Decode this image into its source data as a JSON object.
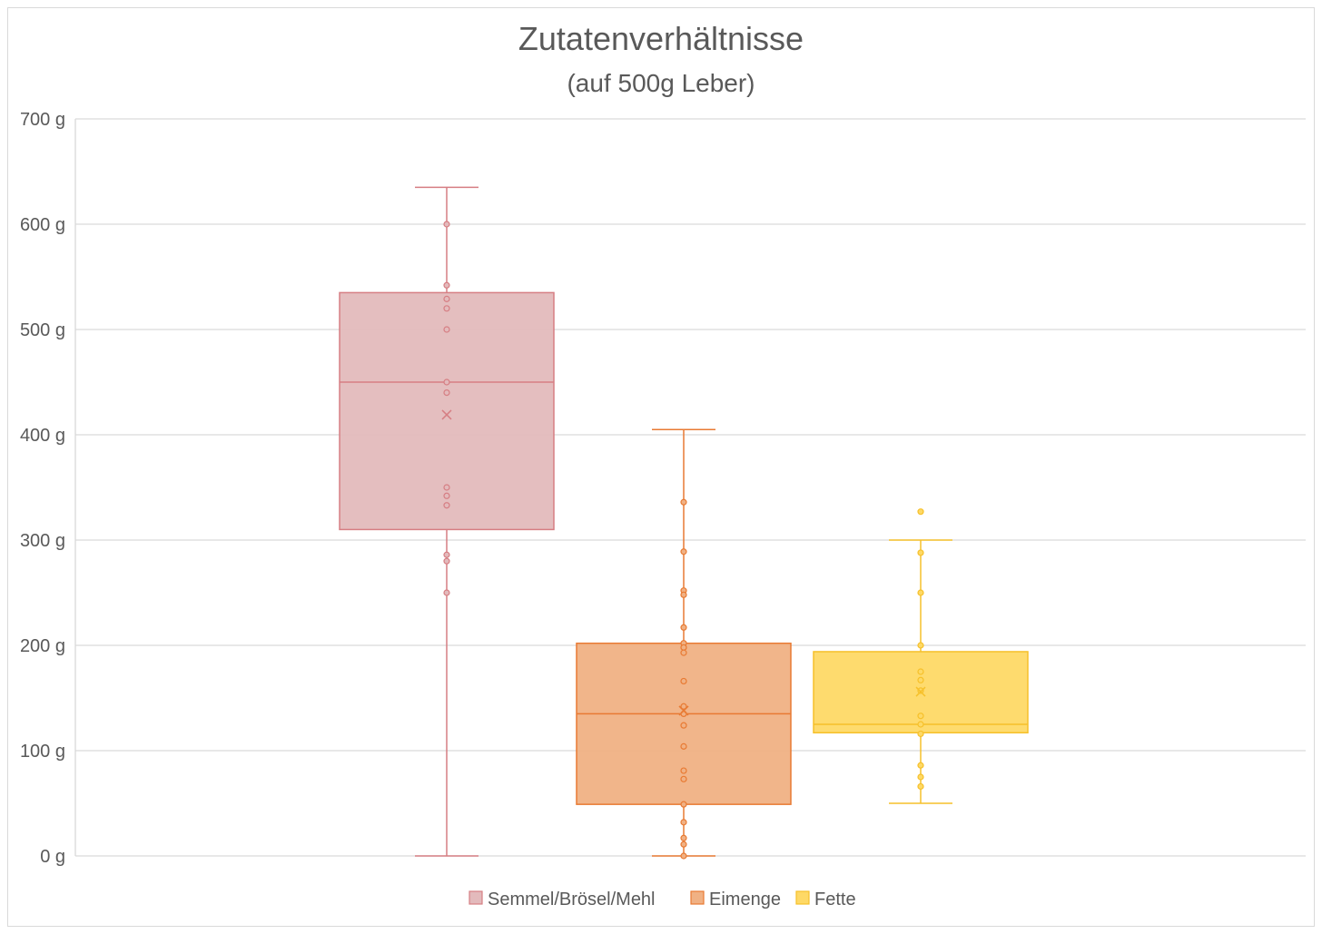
{
  "chart_data": {
    "type": "boxplot",
    "title": "Zutatenverhältnisse",
    "subtitle": "(auf 500g Leber)",
    "ylim": [
      0,
      700
    ],
    "yticks": [
      "0 g",
      "100 g",
      "200 g",
      "300 g",
      "400 g",
      "500 g",
      "600 g",
      "700 g"
    ],
    "ytick_values": [
      0,
      100,
      200,
      300,
      400,
      500,
      600,
      700
    ],
    "grid": true,
    "legend_position": "bottom",
    "series": [
      {
        "name": "Semmel/Brösel/Mehl",
        "color": "#E3BABC",
        "stroke": "#D67E83",
        "min": 0,
        "q1": 310,
        "median": 450,
        "q3": 535,
        "max": 635,
        "mean": 419,
        "points": [
          600,
          542,
          529,
          520,
          500,
          450,
          440,
          350,
          342,
          333,
          286,
          280,
          250
        ]
      },
      {
        "name": "Eimenge",
        "color": "#F0B184",
        "stroke": "#E87A33",
        "min": 0,
        "q1": 49,
        "median": 135,
        "q3": 202,
        "max": 405,
        "mean": 138,
        "points": [
          336,
          289,
          252,
          248,
          217,
          202,
          198,
          193,
          166,
          142,
          135,
          124,
          104,
          81,
          73,
          49,
          32,
          17,
          11,
          0
        ]
      },
      {
        "name": "Fette",
        "color": "#FED966",
        "stroke": "#F6C02A",
        "min": 50,
        "q1": 117,
        "median": 125,
        "q3": 194,
        "max": 300,
        "mean": 156,
        "points": [
          327,
          288,
          250,
          200,
          175,
          167,
          157,
          133,
          125,
          116,
          86,
          75,
          66
        ]
      }
    ]
  }
}
